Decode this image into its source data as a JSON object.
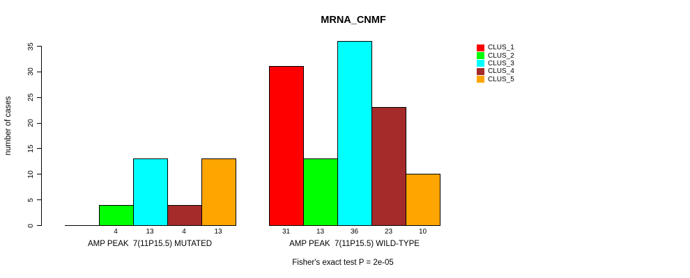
{
  "title": "MRNA_CNMF",
  "footer": "Fisher's exact test P = 2e-05",
  "chart_data": {
    "type": "bar",
    "title": "MRNA_CNMF",
    "xlabel": "",
    "ylabel": "number of cases",
    "ylim": [
      0,
      35
    ],
    "yticks": [
      0,
      5,
      10,
      15,
      20,
      25,
      30,
      35
    ],
    "grid": false,
    "legend_position": "right",
    "series_names": [
      "CLUS_1",
      "CLUS_2",
      "CLUS_3",
      "CLUS_4",
      "CLUS_5"
    ],
    "series_colors": [
      "#ff0000",
      "#00ff00",
      "#00ffff",
      "#a52a2a",
      "#ffa500"
    ],
    "groups": [
      {
        "label": "AMP PEAK  7(11P15.5) MUTATED",
        "values": [
          0,
          4,
          13,
          4,
          13
        ],
        "bar_labels": [
          "",
          "4",
          "13",
          "4",
          "13"
        ]
      },
      {
        "label": "AMP PEAK  7(11P15.5) WILD-TYPE",
        "values": [
          31,
          13,
          36,
          23,
          10
        ],
        "bar_labels": [
          "31",
          "13",
          "36",
          "23",
          "10"
        ]
      }
    ],
    "annotation": "Fisher's exact test P = 2e-05"
  },
  "legend": {
    "items": [
      {
        "label": "CLUS_1",
        "color": "#ff0000"
      },
      {
        "label": "CLUS_2",
        "color": "#00ff00"
      },
      {
        "label": "CLUS_3",
        "color": "#00ffff"
      },
      {
        "label": "CLUS_4",
        "color": "#a52a2a"
      },
      {
        "label": "CLUS_5",
        "color": "#ffa500"
      }
    ]
  }
}
